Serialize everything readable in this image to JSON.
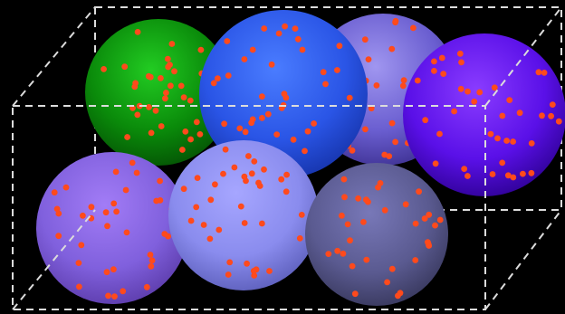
{
  "scene": {
    "background": "#000000",
    "edge_color": "#dcdcdc",
    "dot_color": "#ff4a1c",
    "spheres": [
      {
        "id": "green",
        "colors": [
          "#22cc22",
          "#0a8a0a",
          "#045004"
        ]
      },
      {
        "id": "lavender",
        "colors": [
          "#a096f0",
          "#6a5ed0",
          "#3c2f90"
        ]
      },
      {
        "id": "violet",
        "colors": [
          "#8a3cff",
          "#5a10e8",
          "#2c0090"
        ]
      },
      {
        "id": "blue",
        "colors": [
          "#4a7cff",
          "#2a55e6",
          "#1532a8"
        ]
      },
      {
        "id": "purple",
        "colors": [
          "#a27cf6",
          "#8060dd",
          "#5a3aa8"
        ]
      },
      {
        "id": "periwinkle",
        "colors": [
          "#a6a6ff",
          "#8a8cee",
          "#5a5cb8"
        ]
      },
      {
        "id": "slate",
        "colors": [
          "#7878b8",
          "#5a5a90",
          "#36365a"
        ]
      }
    ]
  }
}
